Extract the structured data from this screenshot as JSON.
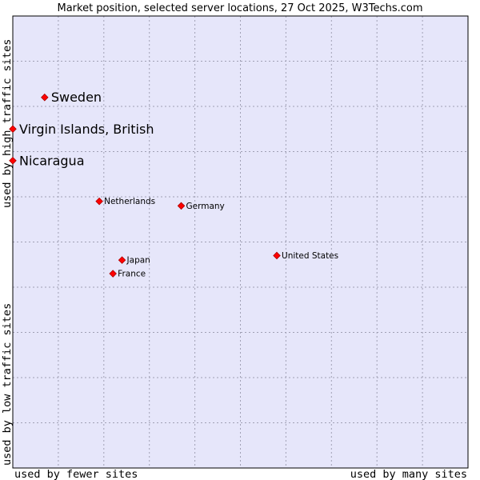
{
  "chart_data": {
    "type": "scatter",
    "title": "Market position, selected server locations, 27 Oct 2025, W3Techs.com",
    "xlabel_left": "used by fewer sites",
    "xlabel_right": "used by many sites",
    "ylabel_top": "used by high traffic sites",
    "ylabel_bottom": "used by low traffic sites",
    "xlim": [
      0,
      100
    ],
    "ylim": [
      0,
      100
    ],
    "grid": true,
    "colors": {
      "plot_background": "#e6e6fa",
      "grid": "#a0a0b4",
      "border": "#000000",
      "point": "#ff0000",
      "point_outline": "#aa0000"
    },
    "points": [
      {
        "label": "Sweden",
        "x": 7,
        "y": 82,
        "emphasis": "large"
      },
      {
        "label": "Virgin Islands, British",
        "x": 0,
        "y": 75,
        "emphasis": "large"
      },
      {
        "label": "Nicaragua",
        "x": 0,
        "y": 68,
        "emphasis": "large"
      },
      {
        "label": "Netherlands",
        "x": 19,
        "y": 59,
        "emphasis": "small"
      },
      {
        "label": "Germany",
        "x": 37,
        "y": 58,
        "emphasis": "small"
      },
      {
        "label": "United States",
        "x": 58,
        "y": 47,
        "emphasis": "small"
      },
      {
        "label": "Japan",
        "x": 24,
        "y": 46,
        "emphasis": "small"
      },
      {
        "label": "France",
        "x": 22,
        "y": 43,
        "emphasis": "small"
      }
    ]
  }
}
